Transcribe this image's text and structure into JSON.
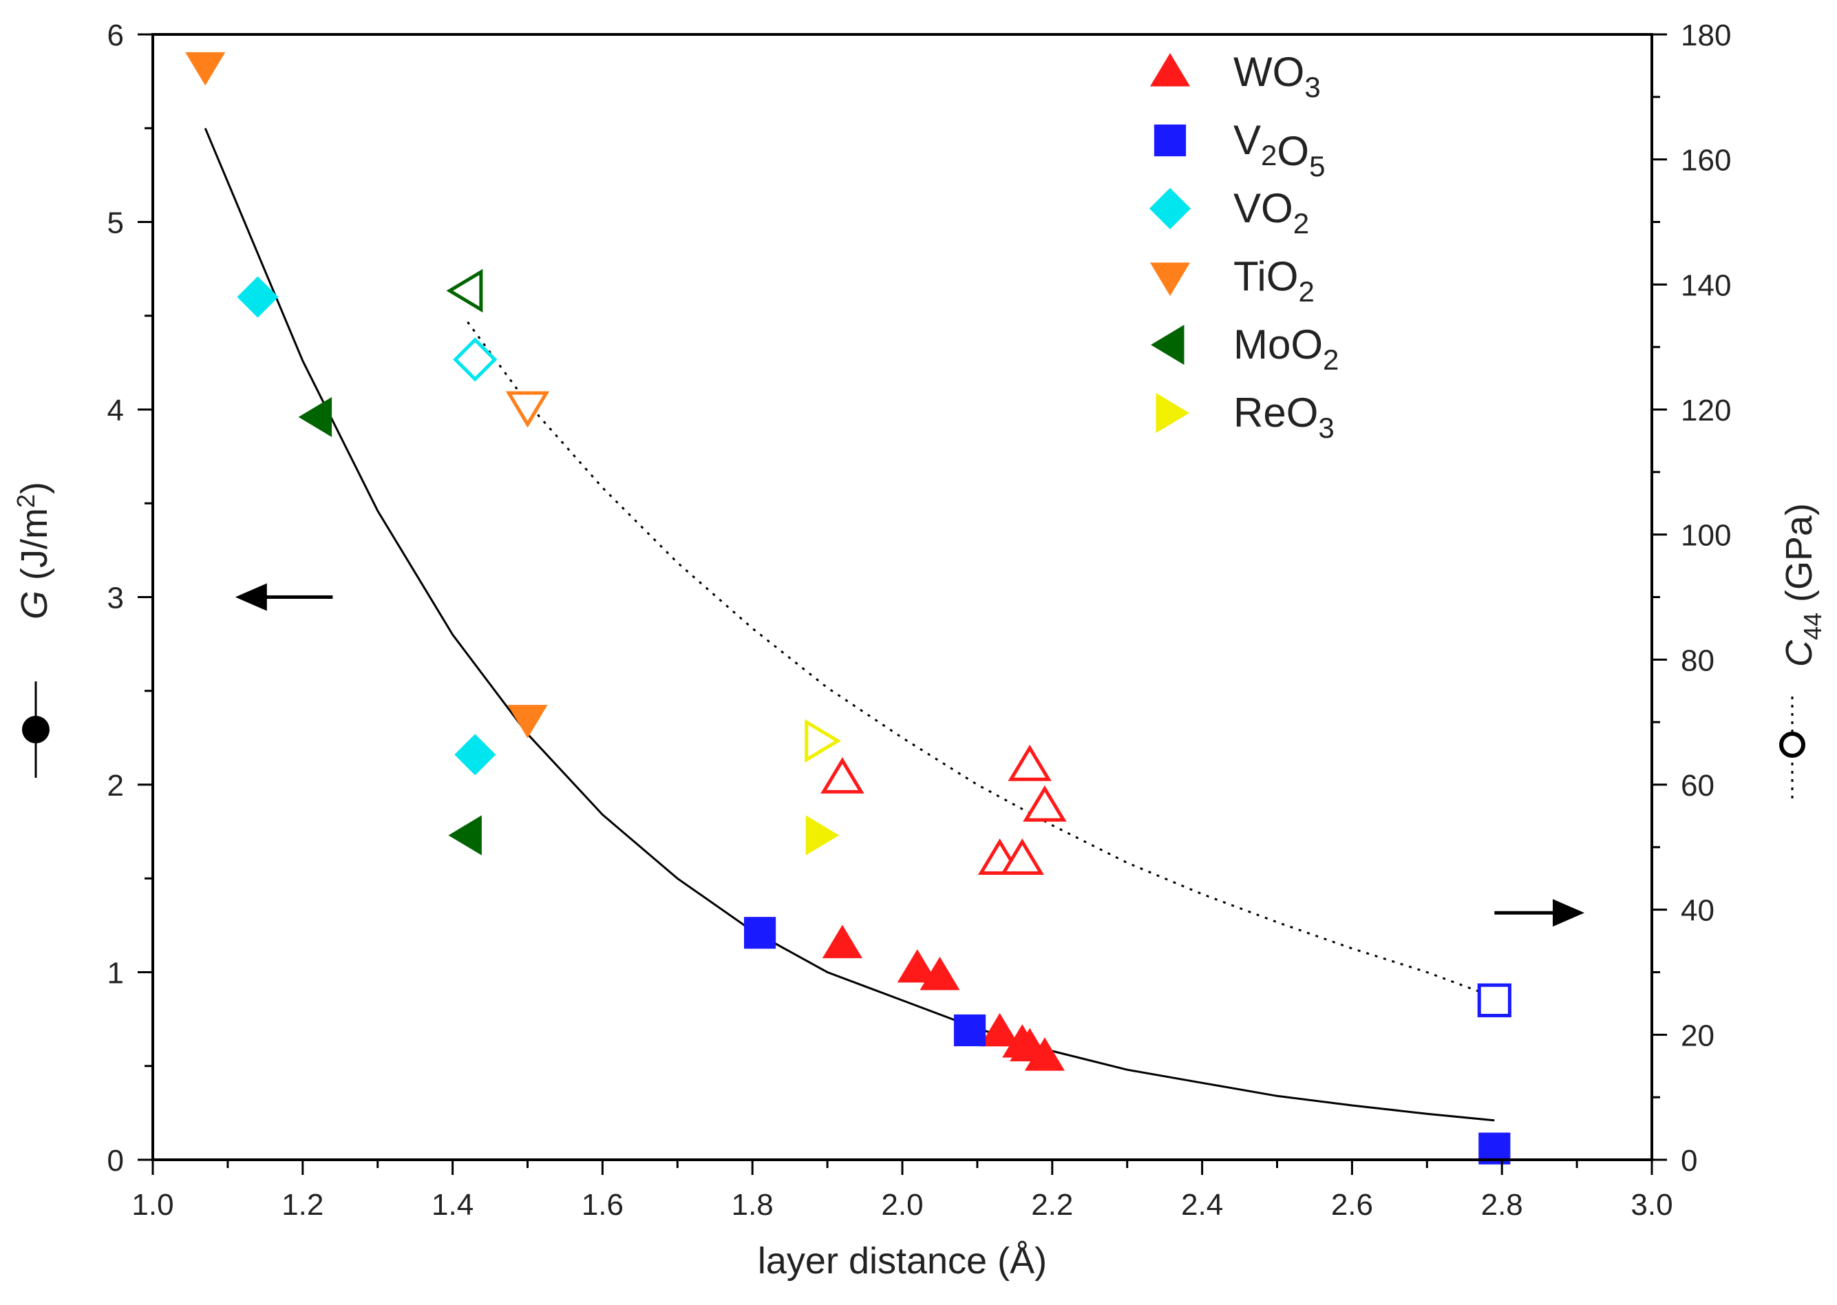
{
  "chart_data": {
    "type": "scatter",
    "xlabel": "layer distance (Å)",
    "ylabel_left": {
      "italic": "G",
      "text": " (J/m",
      "sup": "2",
      "close": ")"
    },
    "ylabel_right": {
      "italic": "C",
      "sub": "44",
      "text": " (GPa)"
    },
    "xlim": [
      1.0,
      3.0
    ],
    "ylim_left": [
      0,
      6
    ],
    "ylim_right": [
      0,
      180
    ],
    "x_ticks": [
      "1.0",
      "1.2",
      "1.4",
      "1.6",
      "1.8",
      "2.0",
      "2.2",
      "2.4",
      "2.6",
      "2.8",
      "3.0"
    ],
    "y_ticks_left": [
      "0",
      "1",
      "2",
      "3",
      "4",
      "5",
      "6"
    ],
    "y_ticks_right": [
      "0",
      "20",
      "40",
      "60",
      "80",
      "100",
      "120",
      "140",
      "160",
      "180"
    ],
    "grid": false,
    "legend_position": "top-right",
    "series": [
      {
        "name": "WO3",
        "label_parts": [
          {
            "t": "WO"
          },
          {
            "sub": "3"
          }
        ],
        "marker": "triangle-up",
        "color": "#ff1a1a",
        "G": [
          [
            1.92,
            1.15
          ],
          [
            2.02,
            1.02
          ],
          [
            2.05,
            0.98
          ],
          [
            2.13,
            0.68
          ],
          [
            2.16,
            0.62
          ],
          [
            2.17,
            0.6
          ],
          [
            2.19,
            0.55
          ]
        ],
        "C44": [
          [
            1.92,
            61
          ],
          [
            2.13,
            48
          ],
          [
            2.16,
            48
          ],
          [
            2.17,
            63
          ],
          [
            2.19,
            56.5
          ]
        ]
      },
      {
        "name": "V2O5",
        "label_parts": [
          {
            "t": "V"
          },
          {
            "sub": "2"
          },
          {
            "t": "O"
          },
          {
            "sub": "5"
          }
        ],
        "marker": "square",
        "color": "#1a1aff",
        "G": [
          [
            1.81,
            1.21
          ],
          [
            2.09,
            0.69
          ],
          [
            2.79,
            0.06
          ]
        ],
        "C44": [
          [
            2.79,
            25.5
          ]
        ]
      },
      {
        "name": "VO2",
        "label_parts": [
          {
            "t": "VO"
          },
          {
            "sub": "2"
          }
        ],
        "marker": "diamond",
        "color": "#00e5ee",
        "G": [
          [
            1.14,
            4.6
          ],
          [
            1.43,
            2.16
          ]
        ],
        "C44": [
          [
            1.43,
            128
          ]
        ]
      },
      {
        "name": "TiO2",
        "label_parts": [
          {
            "t": "TiO"
          },
          {
            "sub": "2"
          }
        ],
        "marker": "triangle-down",
        "color": "#ff7f1a",
        "G": [
          [
            1.07,
            5.83
          ],
          [
            1.5,
            2.35
          ]
        ],
        "C44": [
          [
            1.5,
            120.5
          ]
        ]
      },
      {
        "name": "MoO2",
        "label_parts": [
          {
            "t": "MoO"
          },
          {
            "sub": "2"
          }
        ],
        "marker": "triangle-left",
        "color": "#006400",
        "G": [
          [
            1.22,
            3.96
          ],
          [
            1.42,
            1.73
          ]
        ],
        "C44": [
          [
            1.42,
            139
          ]
        ]
      },
      {
        "name": "ReO3",
        "label_parts": [
          {
            "t": "ReO"
          },
          {
            "sub": "3"
          }
        ],
        "marker": "triangle-right",
        "color": "#f0f000",
        "G": [
          [
            1.89,
            1.73
          ]
        ],
        "C44": [
          [
            1.89,
            67
          ]
        ]
      }
    ],
    "fit_G": {
      "style": "solid",
      "points": [
        [
          1.07,
          5.5
        ],
        [
          1.2,
          4.26
        ],
        [
          1.3,
          3.46
        ],
        [
          1.4,
          2.8
        ],
        [
          1.5,
          2.27
        ],
        [
          1.6,
          1.84
        ],
        [
          1.7,
          1.5
        ],
        [
          1.8,
          1.22
        ],
        [
          1.9,
          1.0
        ],
        [
          2.0,
          0.85
        ],
        [
          2.1,
          0.7
        ],
        [
          2.2,
          0.58
        ],
        [
          2.3,
          0.48
        ],
        [
          2.4,
          0.41
        ],
        [
          2.5,
          0.34
        ],
        [
          2.6,
          0.29
        ],
        [
          2.7,
          0.245
        ],
        [
          2.79,
          0.21
        ]
      ]
    },
    "fit_C44": {
      "style": "dotted",
      "points": [
        [
          1.42,
          134
        ],
        [
          1.5,
          121
        ],
        [
          1.6,
          107.5
        ],
        [
          1.7,
          95.5
        ],
        [
          1.8,
          85
        ],
        [
          1.9,
          75.5
        ],
        [
          2.0,
          67.5
        ],
        [
          2.1,
          60
        ],
        [
          2.2,
          53.5
        ],
        [
          2.3,
          47.5
        ],
        [
          2.4,
          42.5
        ],
        [
          2.5,
          38
        ],
        [
          2.6,
          33.8
        ],
        [
          2.7,
          30
        ],
        [
          2.79,
          26
        ]
      ]
    },
    "arrows": [
      {
        "direction": "left",
        "axis": "left",
        "x": [
          1.11,
          1.24
        ],
        "y": 3.0
      },
      {
        "direction": "right",
        "axis": "right",
        "x": [
          2.79,
          2.91
        ],
        "y": 39.5
      }
    ]
  }
}
